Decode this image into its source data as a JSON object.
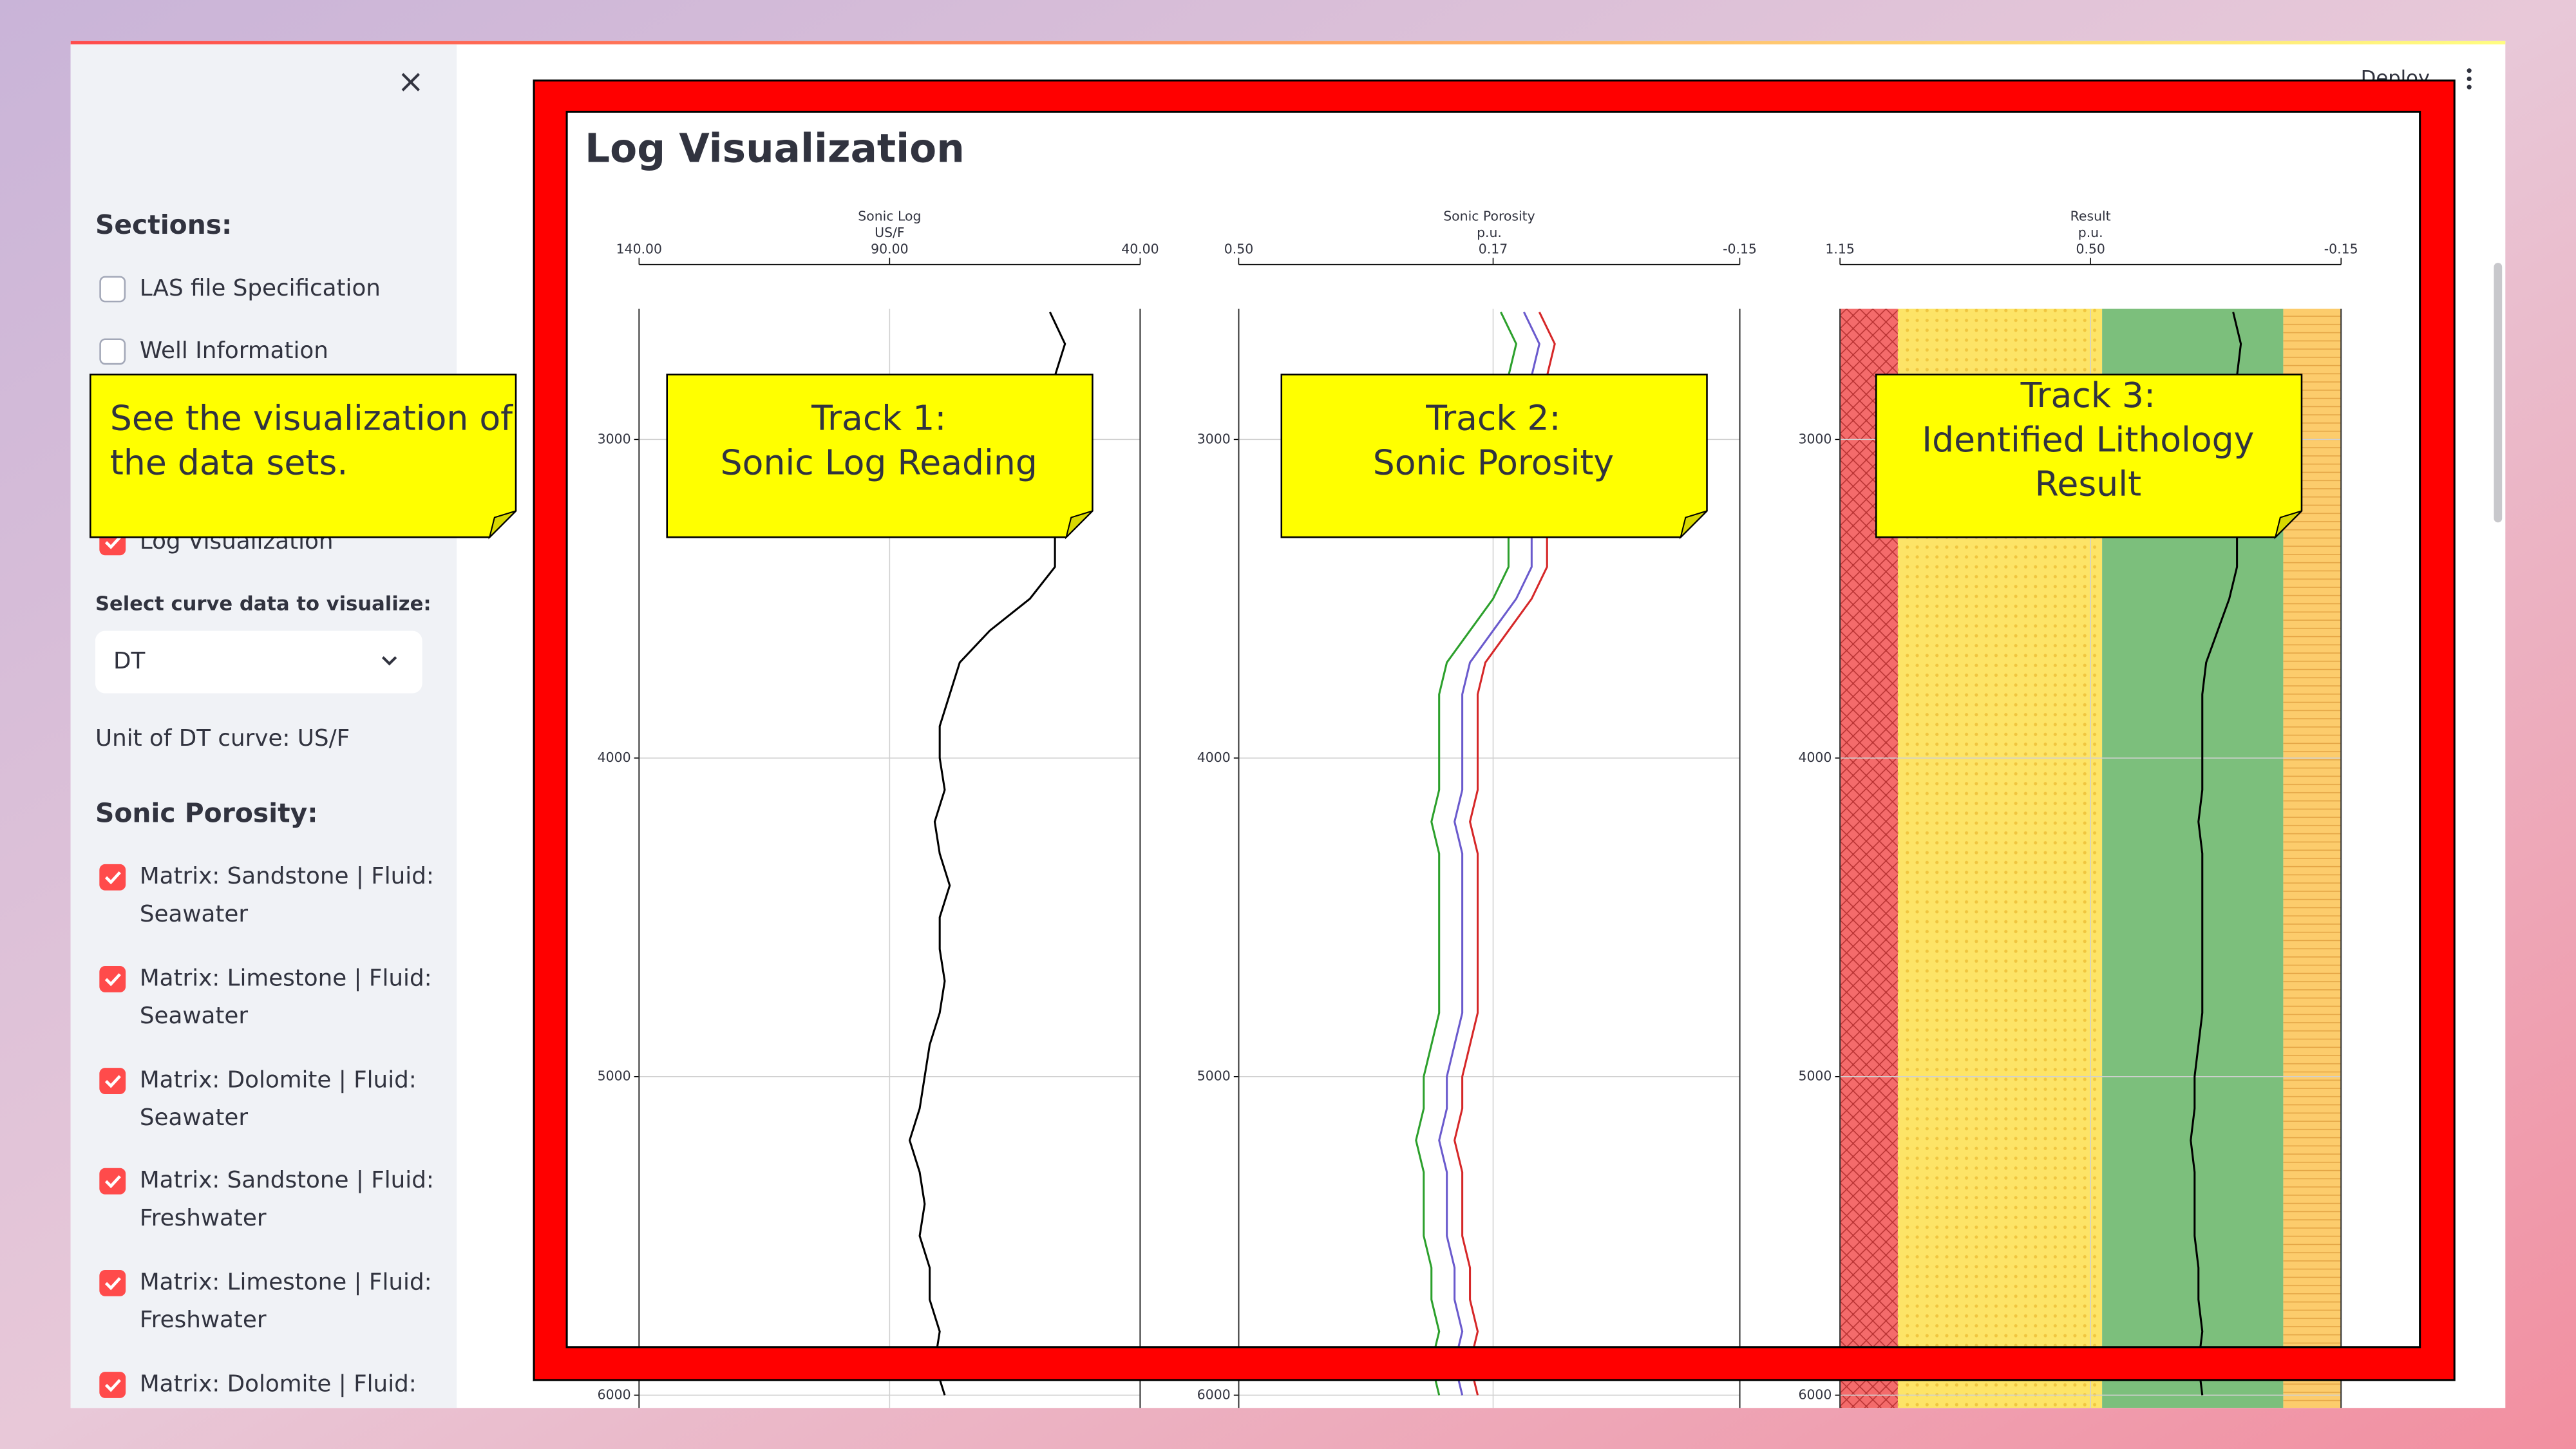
{
  "app": {
    "deploy": "Deploy"
  },
  "sidebar": {
    "sections_title": "Sections:",
    "sections": [
      {
        "label": "LAS file Specification",
        "checked": false
      },
      {
        "label": "Well Information",
        "checked": false
      },
      {
        "label": "Log Visualization",
        "checked": true
      }
    ],
    "select_label": "Select curve data to visualize:",
    "select_value": "DT",
    "unit_text": "Unit of DT curve: US/F",
    "porosity_title": "Sonic Porosity:",
    "porosity_options": [
      {
        "lines": [
          "Matrix: Sandstone | Fluid:",
          "Seawater"
        ],
        "checked": true
      },
      {
        "lines": [
          "Matrix: Limestone | Fluid:",
          "Seawater"
        ],
        "checked": true
      },
      {
        "lines": [
          "Matrix: Dolomite | Fluid:",
          "Seawater"
        ],
        "checked": true
      },
      {
        "lines": [
          "Matrix: Sandstone | Fluid:",
          "Freshwater"
        ],
        "checked": true
      },
      {
        "lines": [
          "Matrix: Limestone | Fluid:",
          "Freshwater"
        ],
        "checked": true
      },
      {
        "lines": [
          "Matrix: Dolomite | Fluid:"
        ],
        "checked": true
      }
    ]
  },
  "main": {
    "title": "Log Visualization",
    "depth_lim": [
      2590,
      6040
    ],
    "depth_ticks": [
      3000,
      4000,
      5000,
      6000
    ],
    "depth": [
      2600,
      2700,
      2800,
      2900,
      3000,
      3100,
      3200,
      3300,
      3400,
      3500,
      3600,
      3700,
      3800,
      3900,
      4000,
      4100,
      4200,
      4300,
      4400,
      4500,
      4600,
      4700,
      4800,
      4900,
      5000,
      5100,
      5200,
      5300,
      5400,
      5500,
      5600,
      5700,
      5800,
      5900,
      6000
    ],
    "tracks": [
      {
        "title": "Sonic Log",
        "unit": "US/F",
        "xlim": [
          140,
          40
        ],
        "xticks": [
          {
            "value": 140,
            "label": "140.00"
          },
          {
            "value": 90,
            "label": "90.00"
          },
          {
            "value": 40,
            "label": "40.00"
          }
        ],
        "series": [
          {
            "color": "#000000",
            "values": [
              58,
              55,
              57,
              60,
              58,
              60,
              58,
              57,
              57,
              62,
              70,
              76,
              78,
              80,
              80,
              79,
              81,
              80,
              78,
              80,
              80,
              79,
              80,
              82,
              83,
              84,
              86,
              84,
              83,
              84,
              82,
              82,
              80,
              81,
              79
            ]
          }
        ]
      },
      {
        "title": "Sonic Porosity",
        "unit": "p.u.",
        "xlim": [
          0.5,
          -0.15
        ],
        "xticks": [
          {
            "value": 0.5,
            "label": "0.50"
          },
          0.17,
          -0.15
        ],
        "series": [
          {
            "color": "#2ca02c",
            "values": [
              0.16,
              0.14,
              0.15,
              0.16,
              0.16,
              0.16,
              0.16,
              0.15,
              0.15,
              0.17,
              0.2,
              0.23,
              0.24,
              0.24,
              0.24,
              0.24,
              0.25,
              0.24,
              0.24,
              0.24,
              0.24,
              0.24,
              0.24,
              0.25,
              0.26,
              0.26,
              0.27,
              0.26,
              0.26,
              0.26,
              0.25,
              0.25,
              0.24,
              0.25,
              0.24
            ]
          },
          {
            "color": "#6a5acd",
            "values": [
              0.13,
              0.11,
              0.12,
              0.13,
              0.13,
              0.13,
              0.13,
              0.12,
              0.12,
              0.14,
              0.17,
              0.2,
              0.21,
              0.21,
              0.21,
              0.21,
              0.22,
              0.21,
              0.21,
              0.21,
              0.21,
              0.21,
              0.21,
              0.22,
              0.23,
              0.23,
              0.24,
              0.23,
              0.23,
              0.23,
              0.22,
              0.22,
              0.21,
              0.22,
              0.21
            ]
          },
          {
            "color": "#d62728",
            "values": [
              0.11,
              0.09,
              0.1,
              0.11,
              0.11,
              0.11,
              0.11,
              0.1,
              0.1,
              0.12,
              0.15,
              0.18,
              0.19,
              0.19,
              0.19,
              0.19,
              0.2,
              0.19,
              0.19,
              0.19,
              0.19,
              0.19,
              0.19,
              0.2,
              0.21,
              0.21,
              0.22,
              0.21,
              0.21,
              0.21,
              0.2,
              0.2,
              0.19,
              0.2,
              0.19
            ]
          }
        ]
      },
      {
        "title": "Result",
        "unit": "p.u.",
        "xlim": [
          1.15,
          -0.15
        ],
        "xticks": [
          1.15,
          {
            "value": 0.5,
            "label": "0.50"
          },
          -0.15
        ],
        "bands": [
          {
            "from": 1.15,
            "to": 1.0,
            "color": "#f46b6b",
            "pattern": "crosshatch"
          },
          {
            "from": 1.0,
            "to": 0.47,
            "color": "#fde467",
            "pattern": "dots"
          },
          {
            "from": 0.47,
            "to": 0.0,
            "color": "#7cbf7c"
          },
          {
            "from": 0.0,
            "to": -0.15,
            "color": "#fccc6c",
            "pattern": "hlines"
          }
        ],
        "series": [
          {
            "color": "#000000",
            "values": [
              0.13,
              0.11,
              0.12,
              0.13,
              0.13,
              0.13,
              0.13,
              0.12,
              0.12,
              0.14,
              0.17,
              0.2,
              0.21,
              0.21,
              0.21,
              0.21,
              0.22,
              0.21,
              0.21,
              0.21,
              0.21,
              0.21,
              0.21,
              0.22,
              0.23,
              0.23,
              0.24,
              0.23,
              0.23,
              0.23,
              0.22,
              0.22,
              0.21,
              0.22,
              0.21
            ]
          }
        ]
      }
    ]
  },
  "callouts": [
    {
      "lines": [
        "See the visualization of",
        "the data sets."
      ]
    },
    {
      "lines": [
        "Track 1:",
        "Sonic Log Reading"
      ]
    },
    {
      "lines": [
        "Track 2:",
        "Sonic Porosity"
      ]
    },
    {
      "lines": [
        "Track 3:",
        "Identified Lithology",
        "Result"
      ]
    }
  ]
}
